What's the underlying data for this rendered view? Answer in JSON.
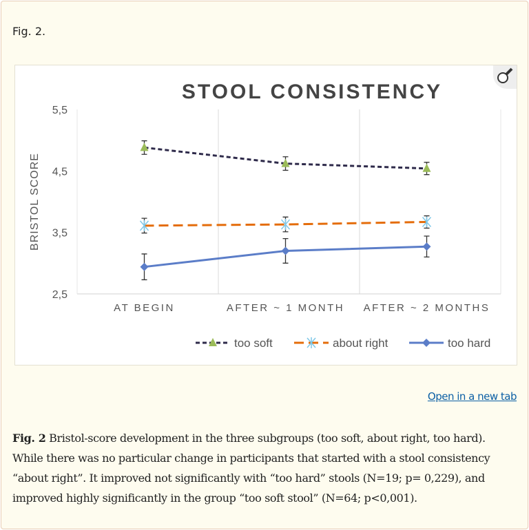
{
  "figure_label": "Fig. 2.",
  "open_link": "Open in a new tab",
  "caption": {
    "label": "Fig. 2",
    "text": " Bristol-score development in the three subgroups (too soft, about right, too hard). While there was no particular change in participants that started with a stool consistency “about right”. It improved not significantly with “too hard” stools (N=19; p= 0,229), and improved highly significantly in the group “too soft stool” (N=64; p<0,001)."
  },
  "icons": {
    "magnify": "magnifier-icon"
  },
  "chart_data": {
    "type": "line",
    "title": "STOOL CONSISTENCY",
    "xlabel": "",
    "ylabel": "BRISTOL SCORE",
    "ylim": [
      2.5,
      5.5
    ],
    "yticks": [
      "2,5",
      "3,5",
      "4,5",
      "5,5"
    ],
    "ytick_values": [
      2.5,
      3.5,
      4.5,
      5.5
    ],
    "categories": [
      "AT BEGIN",
      "AFTER ~ 1 MONTH",
      "AFTER ~ 2 MONTHS"
    ],
    "grid": "vertical",
    "legend": "bottom",
    "series": [
      {
        "name": "too soft",
        "values": [
          4.88,
          4.62,
          4.54
        ],
        "errors": [
          0.11,
          0.11,
          0.1
        ],
        "color": "#2e2a4a",
        "marker": "triangle",
        "marker_color": "#9bbb59",
        "dash": "dotted"
      },
      {
        "name": "about right",
        "values": [
          3.61,
          3.63,
          3.67
        ],
        "errors": [
          0.12,
          0.12,
          0.1
        ],
        "color": "#e46c0a",
        "marker": "asterisk",
        "marker_color": "#7fc8e8",
        "dash": "dashed"
      },
      {
        "name": "too hard",
        "values": [
          2.94,
          3.2,
          3.27
        ],
        "errors": [
          0.21,
          0.2,
          0.17
        ],
        "color": "#5b7dc8",
        "marker": "diamond",
        "marker_color": "#5b7dc8",
        "dash": "solid"
      }
    ]
  }
}
